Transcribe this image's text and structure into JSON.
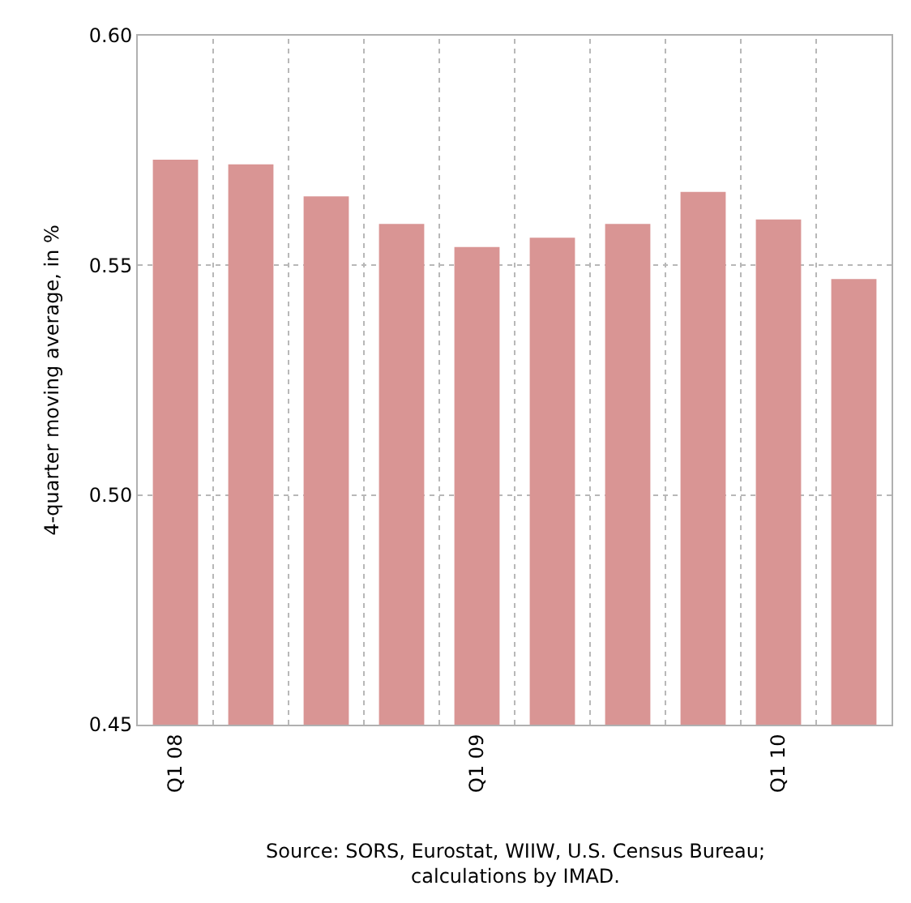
{
  "chart_data": {
    "type": "bar",
    "ylabel": "4-quarter moving average, in %",
    "categories": [
      "Q1 08",
      null,
      null,
      null,
      "Q1 09",
      null,
      null,
      null,
      "Q1 10",
      null
    ],
    "values": [
      0.573,
      0.572,
      0.565,
      0.559,
      0.554,
      0.556,
      0.559,
      0.566,
      0.56,
      0.547
    ],
    "color": "#d99594",
    "ylim": [
      0.45,
      0.6
    ],
    "yticks": [
      {
        "value": 0.45,
        "label": "0.45"
      },
      {
        "value": 0.5,
        "label": "0.50"
      },
      {
        "value": 0.55,
        "label": "0.55"
      },
      {
        "value": 0.6,
        "label": "0.60"
      }
    ],
    "grid": true,
    "legend": false,
    "annotations": [
      "Source: SORS, Eurostat, WIIW, U.S. Census Bureau;\ncalculations by IMAD."
    ]
  }
}
